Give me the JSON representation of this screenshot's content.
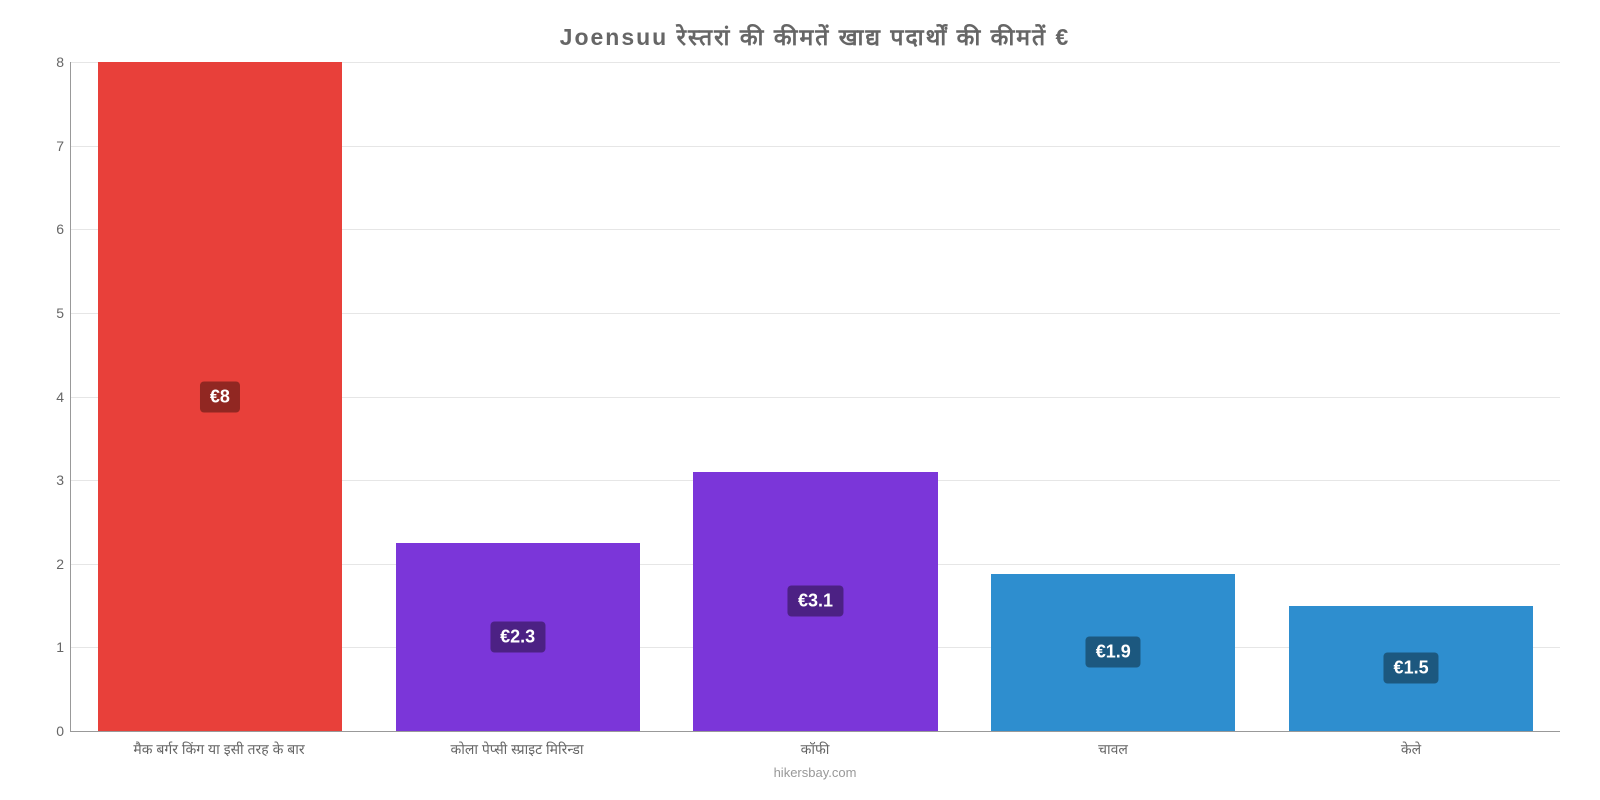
{
  "chart": {
    "type": "bar",
    "title": "Joensuu रेस्तरां   की   कीमतें   खाद्य   पदार्थों   की   कीमतें   €",
    "title_fontsize": 23,
    "title_color": "#666666",
    "background_color": "#ffffff",
    "grid_color": "#e6e6e6",
    "axis_color": "#999999",
    "ylim": [
      0,
      8
    ],
    "ytick_step": 1,
    "ylabel_fontsize": 14,
    "ylabel_color": "#666666",
    "xlabel_fontsize": 14,
    "xlabel_color": "#666666",
    "bar_width_pct": 82,
    "caption": "hikersbay.com",
    "caption_fontsize": 13,
    "caption_color": "#999999",
    "value_label_fontsize": 18,
    "categories": [
      "मैक बर्गर किंग या इसी तरह के बार",
      "कोला पेप्सी स्प्राइट मिरिन्डा",
      "कॉफी",
      "चावल",
      "केले"
    ],
    "values": [
      8,
      2.25,
      3.1,
      1.88,
      1.5
    ],
    "value_labels": [
      "€8",
      "€2.3",
      "€3.1",
      "€1.9",
      "€1.5"
    ],
    "bar_colors": [
      "#e8403a",
      "#7b36d9",
      "#7b36d9",
      "#2e8ecf",
      "#2e8ecf"
    ],
    "badge_colors": [
      "#912722",
      "#4c2184",
      "#4c2184",
      "#1c587f",
      "#1c587f"
    ]
  }
}
